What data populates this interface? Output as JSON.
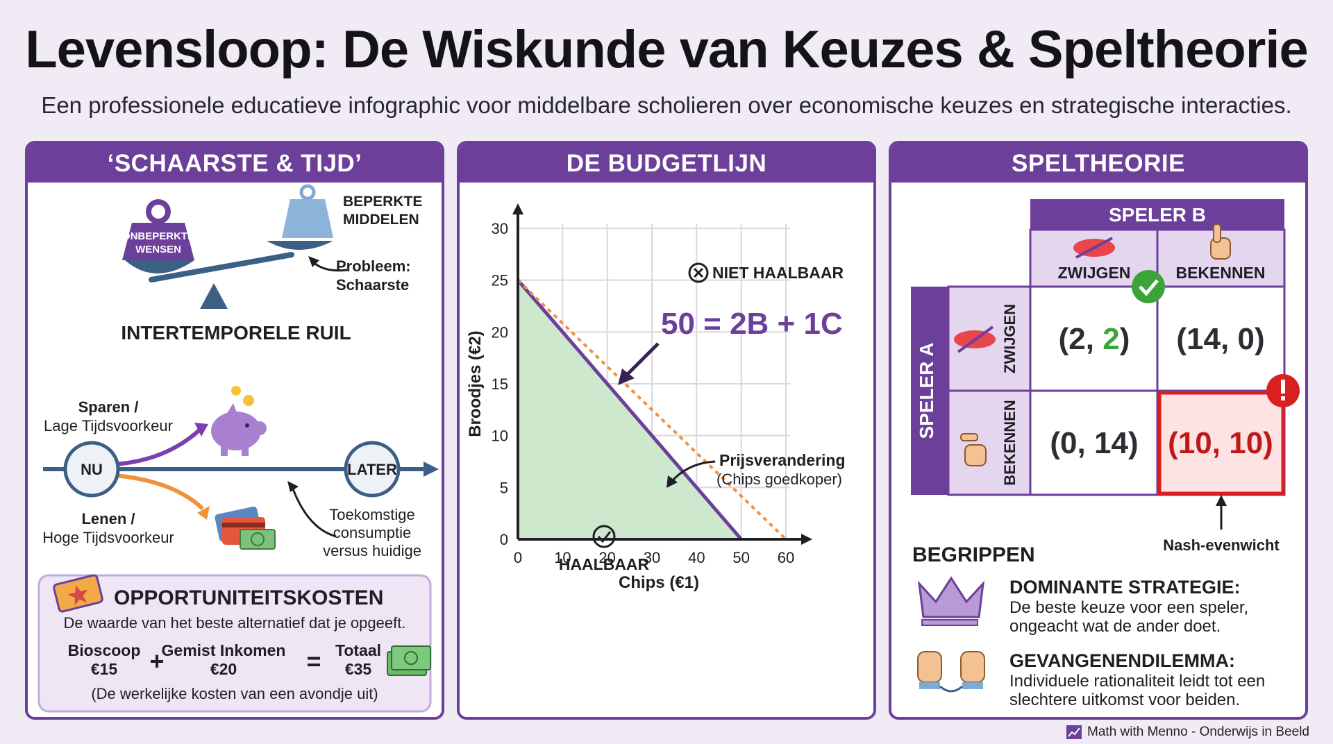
{
  "header": {
    "title": "Levensloop: De Wiskunde van Keuzes & Speltheorie",
    "subtitle": "Een professionele educatieve infographic voor middelbare scholieren over economische keuzes en strategische interacties."
  },
  "colors": {
    "purple": "#6b3f9a",
    "green_fill": "#cde8cc",
    "orange": "#f0923a",
    "red": "#d92020"
  },
  "panel1": {
    "heading": "‘SCHAARSTE & TIJD’",
    "scale_left": "ONBEPERKTE WENSEN",
    "scale_right_1": "BEPERKTE",
    "scale_right_2": "MIDDELEN",
    "problem_1": "Probleem:",
    "problem_2": "Schaarste",
    "section_title": "INTERTEMPORELE RUIL",
    "save_1": "Sparen /",
    "save_2": "Lage Tijdsvoorkeur",
    "borrow_1": "Lenen /",
    "borrow_2": "Hoge Tijdsvoorkeur",
    "now": "NU",
    "later": "LATER",
    "future_1": "Toekomstige",
    "future_2": "consumptie",
    "future_3": "versus huidige",
    "oc_title": "OPPORTUNITEITSKOSTEN",
    "oc_desc": "De waarde van het beste alternatief dat je opgeeft.",
    "oc_a1": "Bioscoop",
    "oc_a2": "€15",
    "oc_b1": "Gemist Inkomen",
    "oc_b2": "€20",
    "oc_c1": "Totaal",
    "oc_c2": "€35",
    "plus": "+",
    "equals": "=",
    "oc_note": "(De werkelijke kosten van een avondje uit)",
    "icons": [
      "weight-icon",
      "piggy-bank-icon",
      "credit-card-icon",
      "cash-icon",
      "ticket-icon"
    ]
  },
  "panel2": {
    "heading": "DE BUDGETLIJN",
    "infeasible": "NIET HAALBAAR",
    "feasible": "HAALBAAR",
    "equation": "50 = 2B + 1C",
    "price_change_1": "Prijsverandering",
    "price_change_2": "(Chips goedkoper)"
  },
  "chart_data": {
    "type": "line",
    "xlabel": "Chips (€1)",
    "ylabel": "Broodjes (€2)",
    "xlim": [
      0,
      60
    ],
    "ylim": [
      0,
      30
    ],
    "x_ticks": [
      0,
      10,
      20,
      30,
      40,
      50,
      60
    ],
    "y_ticks": [
      0,
      5,
      10,
      15,
      20,
      25,
      30
    ],
    "grid": true,
    "series": [
      {
        "style": "solid",
        "color": "#6b3f9a",
        "x": [
          0,
          50
        ],
        "y": [
          25,
          0
        ],
        "fill": "#cde8cc"
      },
      {
        "style": "dashed",
        "color": "#f0923a",
        "x": [
          0,
          60
        ],
        "y": [
          25,
          0
        ]
      }
    ]
  },
  "panel3": {
    "heading": "SPELTHEORIE",
    "player_b": "SPELER B",
    "player_a": "SPELER A",
    "col_1": "ZWIJGEN",
    "col_2": "BEKENNEN",
    "row_1": "ZWIJGEN",
    "row_2": "BEKENNEN",
    "cells": [
      {
        "a": "2",
        "b": "2"
      },
      {
        "a": "14",
        "b": "0"
      },
      {
        "a": "0",
        "b": "14"
      },
      {
        "a": "10",
        "b": "10"
      }
    ],
    "nash": "Nash-evenwicht",
    "concepts_title": "BEGRIPPEN",
    "dom_title": "DOMINANTE STRATEGIE:",
    "dom_1": "De beste keuze voor een speler,",
    "dom_2": "ongeacht wat de ander doet.",
    "pd_title": "GEVANGENENDILEMMA:",
    "pd_1": "Individuele rationaliteit leidt tot een",
    "pd_2": "slechtere uitkomst voor beiden."
  },
  "footer": {
    "credit": "Math with Menno - Onderwijs in Beeld"
  }
}
